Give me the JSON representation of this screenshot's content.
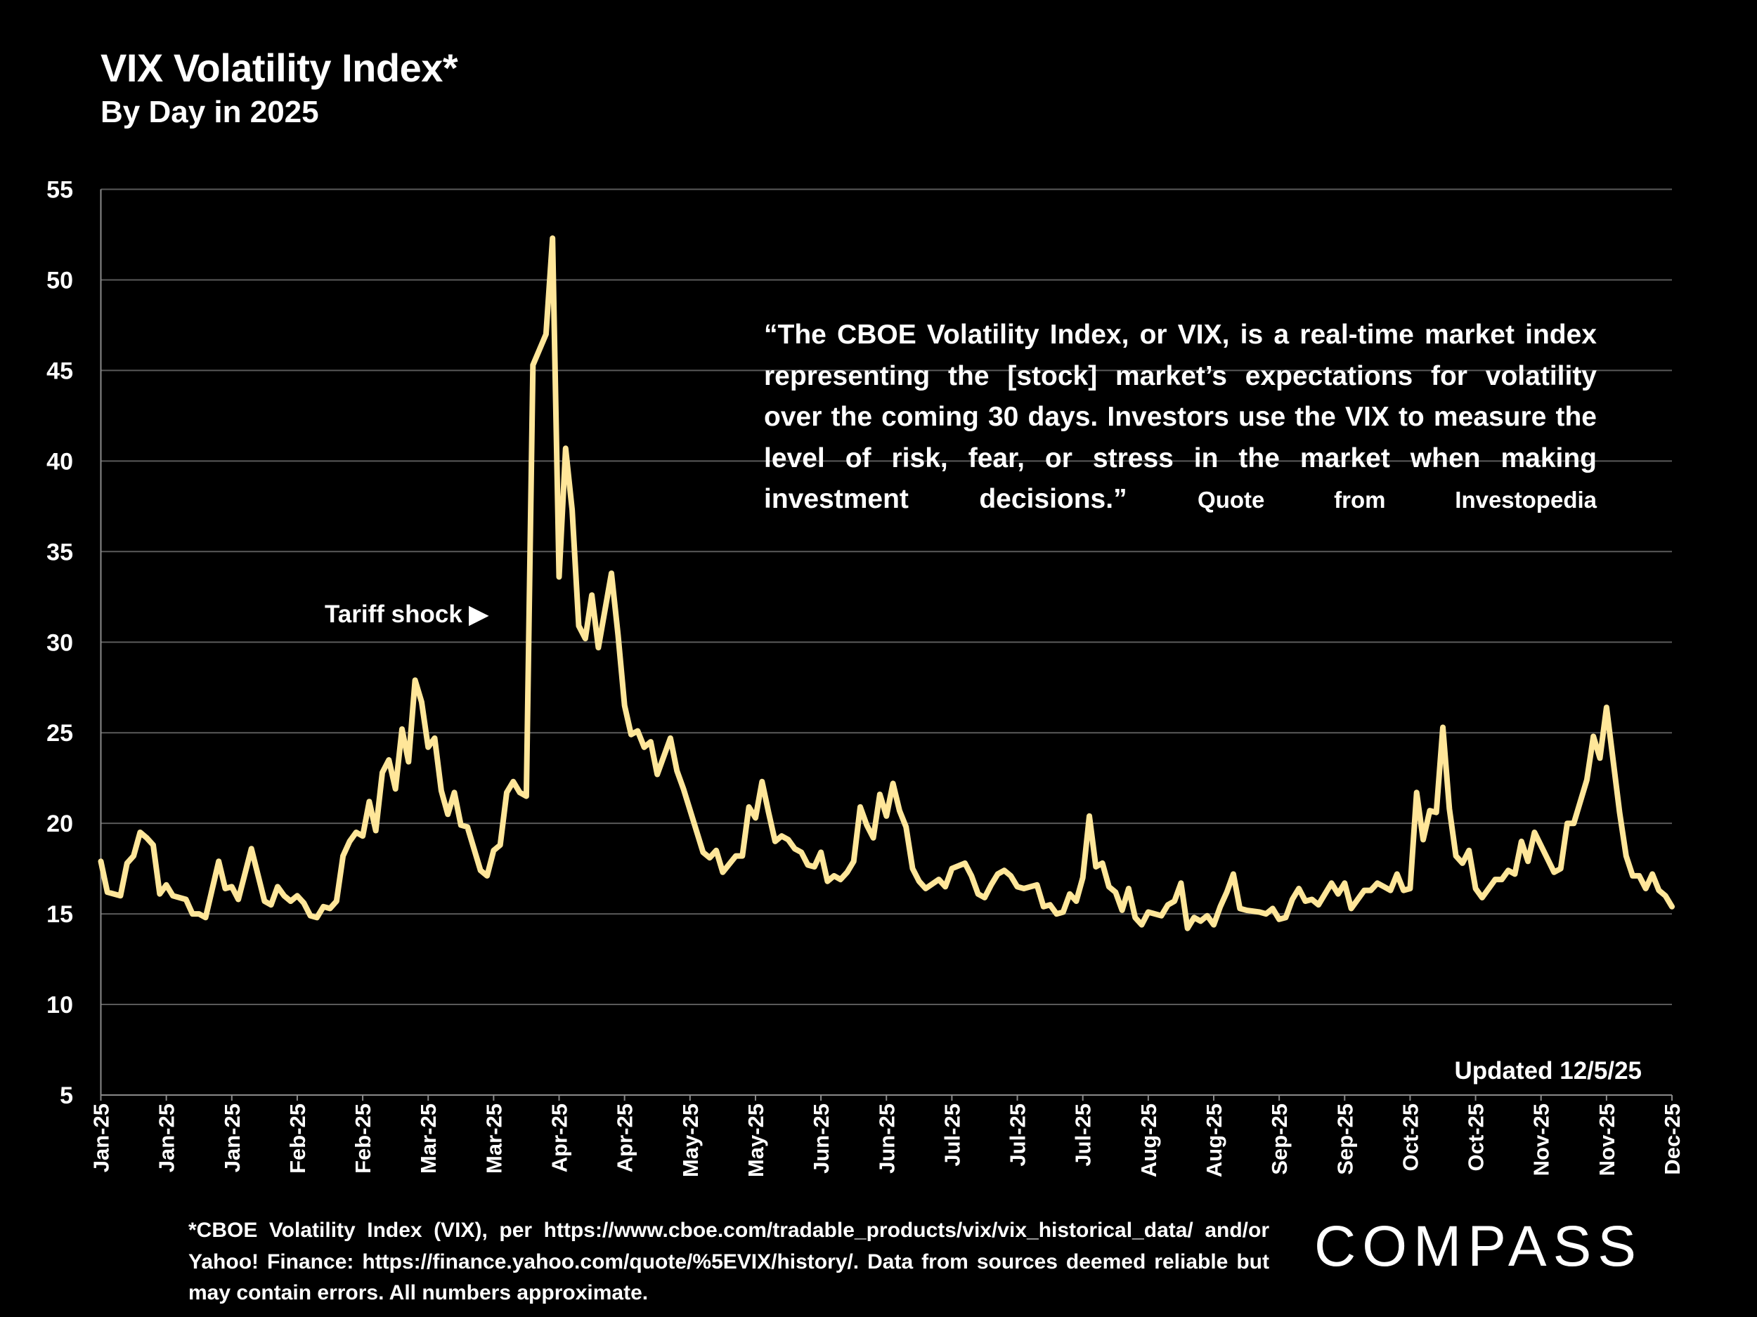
{
  "header": {
    "title": "VIX Volatility Index*",
    "subtitle": "By Day in 2025"
  },
  "annotations": {
    "quote": "“The CBOE Volatility Index, or VIX, is a real-time market index representing the [stock] market’s expectations for volatility over the coming 30 days. Investors use the VIX to measure the level of risk, fear, or stress in the market when making investment decisions.”",
    "quote_source": "Quote from Investopedia",
    "tariff": "Tariff shock ▶",
    "updated": "Updated 12/5/25"
  },
  "footnote": "*CBOE Volatility Index (VIX), per https://www.cboe.com/tradable_products/vix/vix_historical_data/ and/or Yahoo! Finance: https://finance.yahoo.com/quote/%5EVIX/history/. Data from sources deemed reliable but may contain errors. All numbers approximate.",
  "logo": "COMPASS",
  "chart_data": {
    "type": "line",
    "title": "VIX Volatility Index*",
    "subtitle": "By Day in 2025",
    "ylim": [
      5,
      55
    ],
    "y_ticks": [
      "5",
      "10",
      "15",
      "20",
      "25",
      "30",
      "35",
      "40",
      "45",
      "50",
      "55"
    ],
    "x_tick_labels": [
      "Jan-25",
      "Jan-25",
      "Jan-25",
      "Feb-25",
      "Feb-25",
      "Mar-25",
      "Mar-25",
      "Apr-25",
      "Apr-25",
      "May-25",
      "May-25",
      "Jun-25",
      "Jun-25",
      "Jul-25",
      "Jul-25",
      "Jul-25",
      "Aug-25",
      "Aug-25",
      "Sep-25",
      "Sep-25",
      "Oct-25",
      "Oct-25",
      "Nov-25",
      "Nov-25",
      "Dec-25"
    ],
    "grid": true,
    "line_color": "#FFE699",
    "series": [
      {
        "trading_day": [
          0,
          1,
          3,
          4,
          5,
          6,
          7,
          8,
          9,
          10,
          11,
          13,
          14,
          15,
          16,
          18,
          19,
          20,
          21,
          23,
          25,
          26,
          27,
          28,
          29,
          30,
          31,
          32,
          33,
          34,
          35,
          36,
          37,
          38,
          39,
          40,
          41,
          42,
          43,
          44,
          45,
          46,
          47,
          48,
          49,
          50,
          51,
          52,
          53,
          54,
          55,
          56,
          58,
          59,
          60,
          61,
          62,
          63,
          64,
          65,
          66,
          68,
          69,
          70,
          71,
          72,
          73,
          74,
          75,
          76,
          78,
          79,
          80,
          81,
          82,
          83,
          84,
          85,
          87,
          88,
          89,
          92,
          93,
          94,
          95,
          97,
          98,
          99,
          100,
          101,
          102,
          103,
          104,
          105,
          106,
          107,
          108,
          109,
          110,
          111,
          112,
          113,
          114,
          115,
          116,
          117,
          118,
          119,
          120,
          121,
          122,
          123,
          124,
          125,
          126,
          128,
          129,
          130,
          132,
          133,
          134,
          135,
          136,
          137,
          138,
          139,
          140,
          141,
          143,
          144,
          145,
          146,
          147,
          148,
          149,
          150,
          151,
          152,
          153,
          154,
          155,
          156,
          157,
          158,
          159,
          160,
          162,
          163,
          164,
          165,
          166,
          167,
          168,
          169,
          170,
          171,
          172,
          173,
          174,
          175,
          177,
          178,
          179,
          180,
          181,
          182,
          183,
          184,
          185,
          186,
          187,
          188,
          189,
          190,
          191,
          193,
          194,
          195,
          196,
          197,
          198,
          199,
          200,
          201,
          202,
          203,
          204,
          205,
          206,
          207,
          208,
          209,
          210,
          211,
          213,
          214,
          215,
          216,
          217,
          218,
          219,
          222,
          223,
          224,
          225,
          227,
          228,
          229,
          230,
          231,
          232,
          233,
          234,
          235,
          236,
          237,
          238,
          239,
          240
        ],
        "values": [
          17.9,
          16.2,
          16.0,
          17.8,
          18.2,
          19.5,
          19.2,
          18.8,
          16.1,
          16.6,
          16.0,
          15.8,
          15.0,
          15.0,
          14.8,
          17.9,
          16.4,
          16.5,
          15.8,
          18.6,
          15.7,
          15.5,
          16.5,
          16.0,
          15.7,
          16.0,
          15.6,
          14.9,
          14.8,
          15.4,
          15.3,
          15.7,
          18.2,
          19.0,
          19.5,
          19.3,
          21.2,
          19.6,
          22.8,
          23.5,
          21.9,
          25.2,
          23.4,
          27.9,
          26.7,
          24.2,
          24.7,
          21.8,
          20.5,
          21.7,
          19.9,
          19.8,
          17.4,
          17.1,
          18.5,
          18.8,
          21.7,
          22.3,
          21.7,
          21.5,
          45.3,
          47.0,
          52.3,
          33.6,
          40.7,
          37.3,
          30.9,
          30.2,
          32.6,
          29.7,
          33.8,
          30.4,
          26.5,
          24.9,
          25.1,
          24.2,
          24.5,
          22.7,
          24.7,
          22.9,
          21.9,
          18.4,
          18.1,
          18.5,
          17.3,
          18.2,
          18.2,
          20.9,
          20.3,
          22.3,
          20.6,
          19.0,
          19.3,
          19.1,
          18.6,
          18.4,
          17.7,
          17.6,
          18.4,
          16.8,
          17.1,
          16.9,
          17.3,
          17.9,
          20.9,
          19.9,
          19.2,
          21.6,
          20.4,
          22.2,
          20.7,
          19.8,
          17.5,
          16.8,
          16.4,
          16.9,
          16.5,
          17.5,
          17.8,
          17.1,
          16.1,
          15.9,
          16.6,
          17.2,
          17.4,
          17.1,
          16.5,
          16.4,
          16.6,
          15.4,
          15.5,
          15.0,
          15.1,
          16.1,
          15.7,
          17.0,
          20.4,
          17.6,
          17.8,
          16.5,
          16.2,
          15.2,
          16.4,
          14.8,
          14.4,
          15.1,
          14.9,
          15.5,
          15.7,
          16.7,
          14.2,
          14.8,
          14.6,
          14.9,
          14.4,
          15.4,
          16.2,
          17.2,
          15.3,
          15.2,
          15.1,
          15.0,
          15.3,
          14.7,
          14.8,
          15.8,
          16.4,
          15.7,
          15.8,
          15.5,
          16.1,
          16.7,
          16.1,
          16.7,
          15.3,
          16.3,
          16.3,
          16.7,
          16.5,
          16.3,
          17.2,
          16.3,
          16.4,
          21.7,
          19.1,
          20.7,
          20.6,
          25.3,
          20.8,
          18.2,
          17.8,
          18.5,
          16.4,
          15.9,
          16.9,
          16.9,
          17.4,
          17.2,
          19.0,
          17.9,
          19.5,
          17.3,
          17.5,
          20.0,
          20.0,
          22.4,
          24.8,
          23.6,
          26.4,
          23.5,
          20.6,
          18.2,
          17.1,
          17.1,
          16.4,
          17.2,
          16.3,
          16.0,
          15.4
        ]
      }
    ]
  }
}
